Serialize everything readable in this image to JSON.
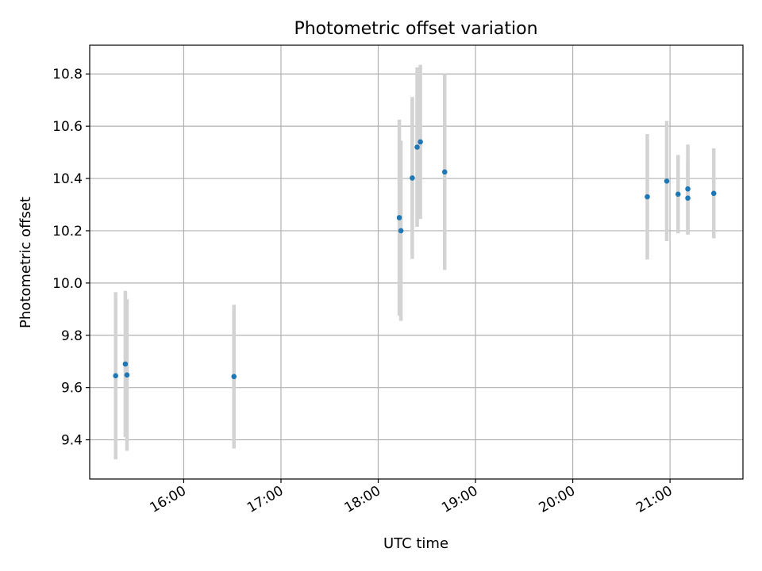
{
  "chart_data": {
    "type": "scatter",
    "title": "Photometric offset variation",
    "xlabel": "UTC time",
    "ylabel": "Photometric offset",
    "x_unit": "UTC time (HH:MM)",
    "xlim": [
      "15:02",
      "21:45"
    ],
    "ylim": [
      9.25,
      10.91
    ],
    "x_ticks": [
      "16:00",
      "17:00",
      "18:00",
      "19:00",
      "20:00",
      "21:00"
    ],
    "y_ticks": [
      9.4,
      9.6,
      9.8,
      10.0,
      10.2,
      10.4,
      10.6,
      10.8
    ],
    "y_tick_labels": [
      "9.4",
      "9.6",
      "9.8",
      "10.0",
      "10.2",
      "10.4",
      "10.6",
      "10.8"
    ],
    "grid": true,
    "colors": {
      "point": "#1f77b4",
      "errorbar": "#d3d3d3",
      "grid": "#b0b0b0"
    },
    "points": [
      {
        "time": "15:18",
        "y": 9.645,
        "err": 0.32
      },
      {
        "time": "15:24",
        "y": 9.69,
        "err": 0.28
      },
      {
        "time": "15:25",
        "y": 9.648,
        "err": 0.29
      },
      {
        "time": "16:31",
        "y": 9.642,
        "err": 0.275
      },
      {
        "time": "18:13",
        "y": 10.25,
        "err": 0.375
      },
      {
        "time": "18:14",
        "y": 10.2,
        "err": 0.345
      },
      {
        "time": "18:21",
        "y": 10.402,
        "err": 0.31
      },
      {
        "time": "18:24",
        "y": 10.52,
        "err": 0.305
      },
      {
        "time": "18:26",
        "y": 10.54,
        "err": 0.295
      },
      {
        "time": "18:41",
        "y": 10.425,
        "err": 0.375
      },
      {
        "time": "20:46",
        "y": 10.33,
        "err": 0.24
      },
      {
        "time": "20:58",
        "y": 10.39,
        "err": 0.23
      },
      {
        "time": "21:05",
        "y": 10.34,
        "err": 0.15
      },
      {
        "time": "21:11",
        "y": 10.325,
        "err": 0.14
      },
      {
        "time": "21:11",
        "y": 10.36,
        "err": 0.17
      },
      {
        "time": "21:27",
        "y": 10.343,
        "err": 0.172
      }
    ]
  }
}
